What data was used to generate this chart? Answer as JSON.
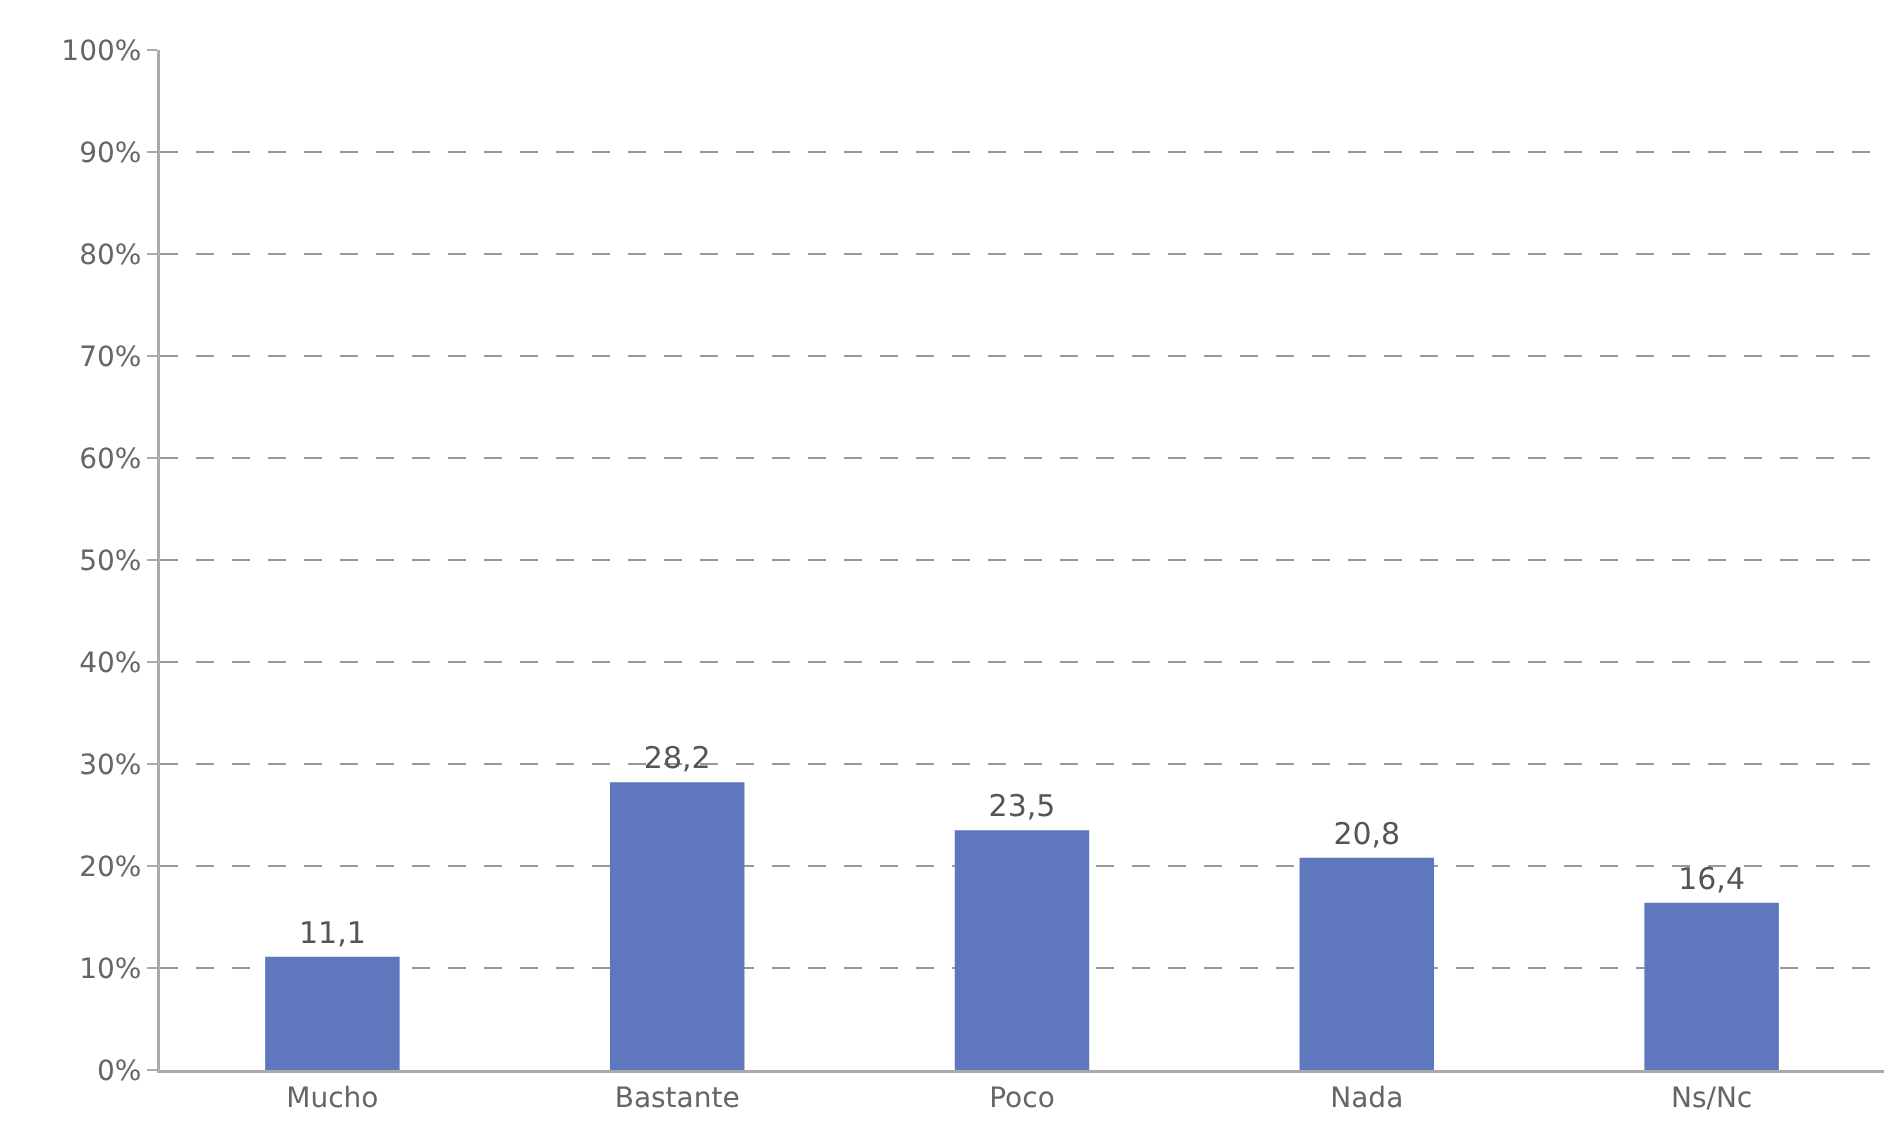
{
  "chart_data": {
    "type": "bar",
    "categories": [
      "Mucho",
      "Bastante",
      "Poco",
      "Nada",
      "Ns/Nc"
    ],
    "values": [
      11.1,
      28.2,
      23.5,
      20.8,
      16.4
    ],
    "value_labels": [
      "11,1",
      "28,2",
      "23,5",
      "20,8",
      "16,4"
    ],
    "color": "#5f78bd",
    "ylim": [
      0,
      100
    ],
    "yticks": [
      {
        "value": 0,
        "label": "0%"
      },
      {
        "value": 10,
        "label": "10%"
      },
      {
        "value": 20,
        "label": "20%"
      },
      {
        "value": 30,
        "label": "30%"
      },
      {
        "value": 40,
        "label": "40%"
      },
      {
        "value": 50,
        "label": "50%"
      },
      {
        "value": 60,
        "label": "60%"
      },
      {
        "value": 70,
        "label": "70%"
      },
      {
        "value": 80,
        "label": "80%"
      },
      {
        "value": 90,
        "label": "90%"
      },
      {
        "value": 100,
        "label": "100%"
      }
    ],
    "grid": "y"
  }
}
